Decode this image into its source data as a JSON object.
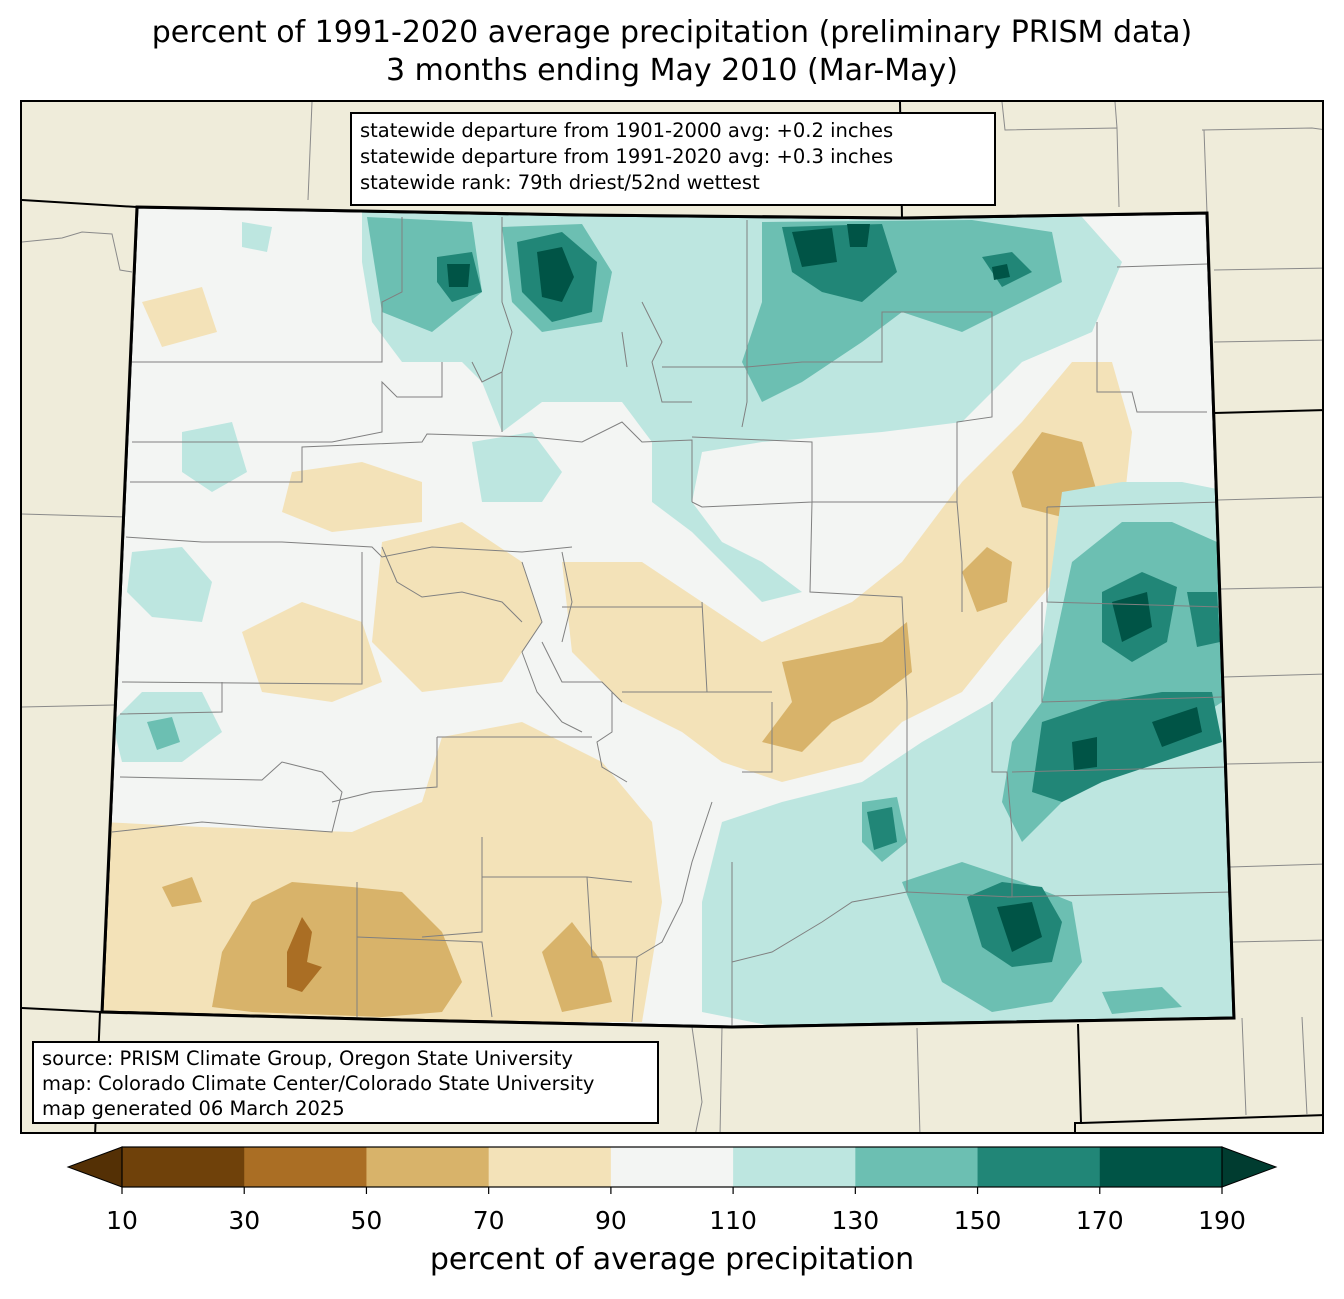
{
  "title": {
    "line1": "percent of 1991-2020 average precipitation (preliminary PRISM data)",
    "line2": "3 months ending May 2010 (Mar-May)"
  },
  "stats": {
    "line1": "statewide departure from 1901-2000 avg: +0.2 inches",
    "line2": "statewide departure from 1991-2020 avg: +0.3 inches",
    "line3": "statewide rank: 79th driest/52nd wettest"
  },
  "credits": {
    "line1": "source: PRISM Climate Group, Oregon State University",
    "line2": "map: Colorado Climate Center/Colorado State University",
    "line3": "map generated 06 March 2025"
  },
  "colorbar": {
    "label": "percent of average precipitation",
    "ticks": [
      "10",
      "30",
      "50",
      "70",
      "90",
      "110",
      "130",
      "150",
      "170",
      "190"
    ],
    "under_color": "#543005",
    "over_color": "#003c30",
    "bins": [
      {
        "range": "10-30",
        "color": "#6f410a"
      },
      {
        "range": "30-50",
        "color": "#aa6e24"
      },
      {
        "range": "50-70",
        "color": "#d8b36a"
      },
      {
        "range": "70-90",
        "color": "#f3e2b8"
      },
      {
        "range": "90-110",
        "color": "#f3f5f3"
      },
      {
        "range": "110-130",
        "color": "#bde6e0"
      },
      {
        "range": "130-150",
        "color": "#6cbfb2"
      },
      {
        "range": "150-170",
        "color": "#218677"
      },
      {
        "range": "170-190",
        "color": "#005446"
      }
    ]
  },
  "colors": {
    "land_outside": "#efecda",
    "county_lines": "#808080",
    "state_lines": "#000000"
  }
}
